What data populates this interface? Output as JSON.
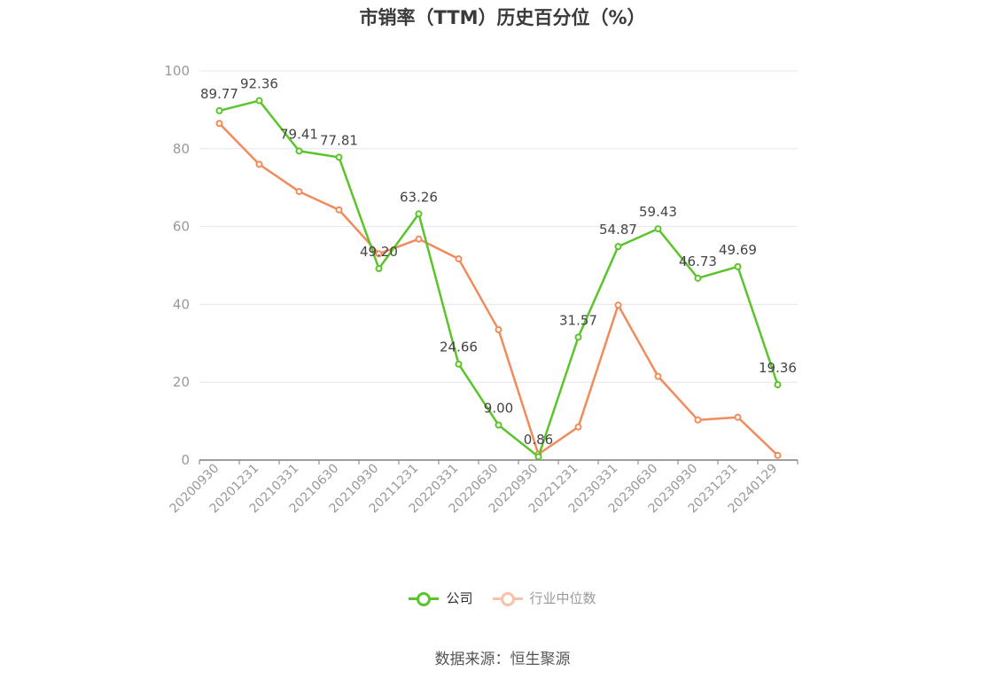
{
  "chart_data": {
    "type": "line",
    "title": "市销率（TTM）历史百分位（%）",
    "categories": [
      "20200930",
      "20201231",
      "20210331",
      "20210630",
      "20210930",
      "20211231",
      "20220331",
      "20220630",
      "20220930",
      "20221231",
      "20230331",
      "20230630",
      "20230930",
      "20231231",
      "20240129"
    ],
    "ylim": [
      0,
      100
    ],
    "yticks": [
      0,
      20,
      40,
      60,
      80,
      100
    ],
    "grid": true,
    "legend_position": "bottom",
    "series": [
      {
        "name": "公司",
        "color": "#5cc42b",
        "values": [
          89.77,
          92.36,
          79.41,
          77.81,
          49.2,
          63.26,
          24.66,
          9.0,
          0.86,
          31.57,
          54.87,
          59.43,
          46.73,
          49.69,
          19.36
        ],
        "labels": [
          "89.77",
          "92.36",
          "79.41",
          "77.81",
          "49.20",
          "63.26",
          "24.66",
          "9.00",
          "0.86",
          "31.57",
          "54.87",
          "59.43",
          "46.73",
          "49.69",
          "19.36"
        ]
      },
      {
        "name": "行业中位数",
        "color": "#f28b5c",
        "values": [
          86.5,
          76.0,
          69.0,
          64.3,
          53.0,
          56.8,
          51.7,
          33.5,
          1.5,
          8.5,
          39.8,
          21.5,
          10.3,
          11.0,
          1.2
        ]
      }
    ]
  },
  "source": "数据来源：恒生聚源"
}
